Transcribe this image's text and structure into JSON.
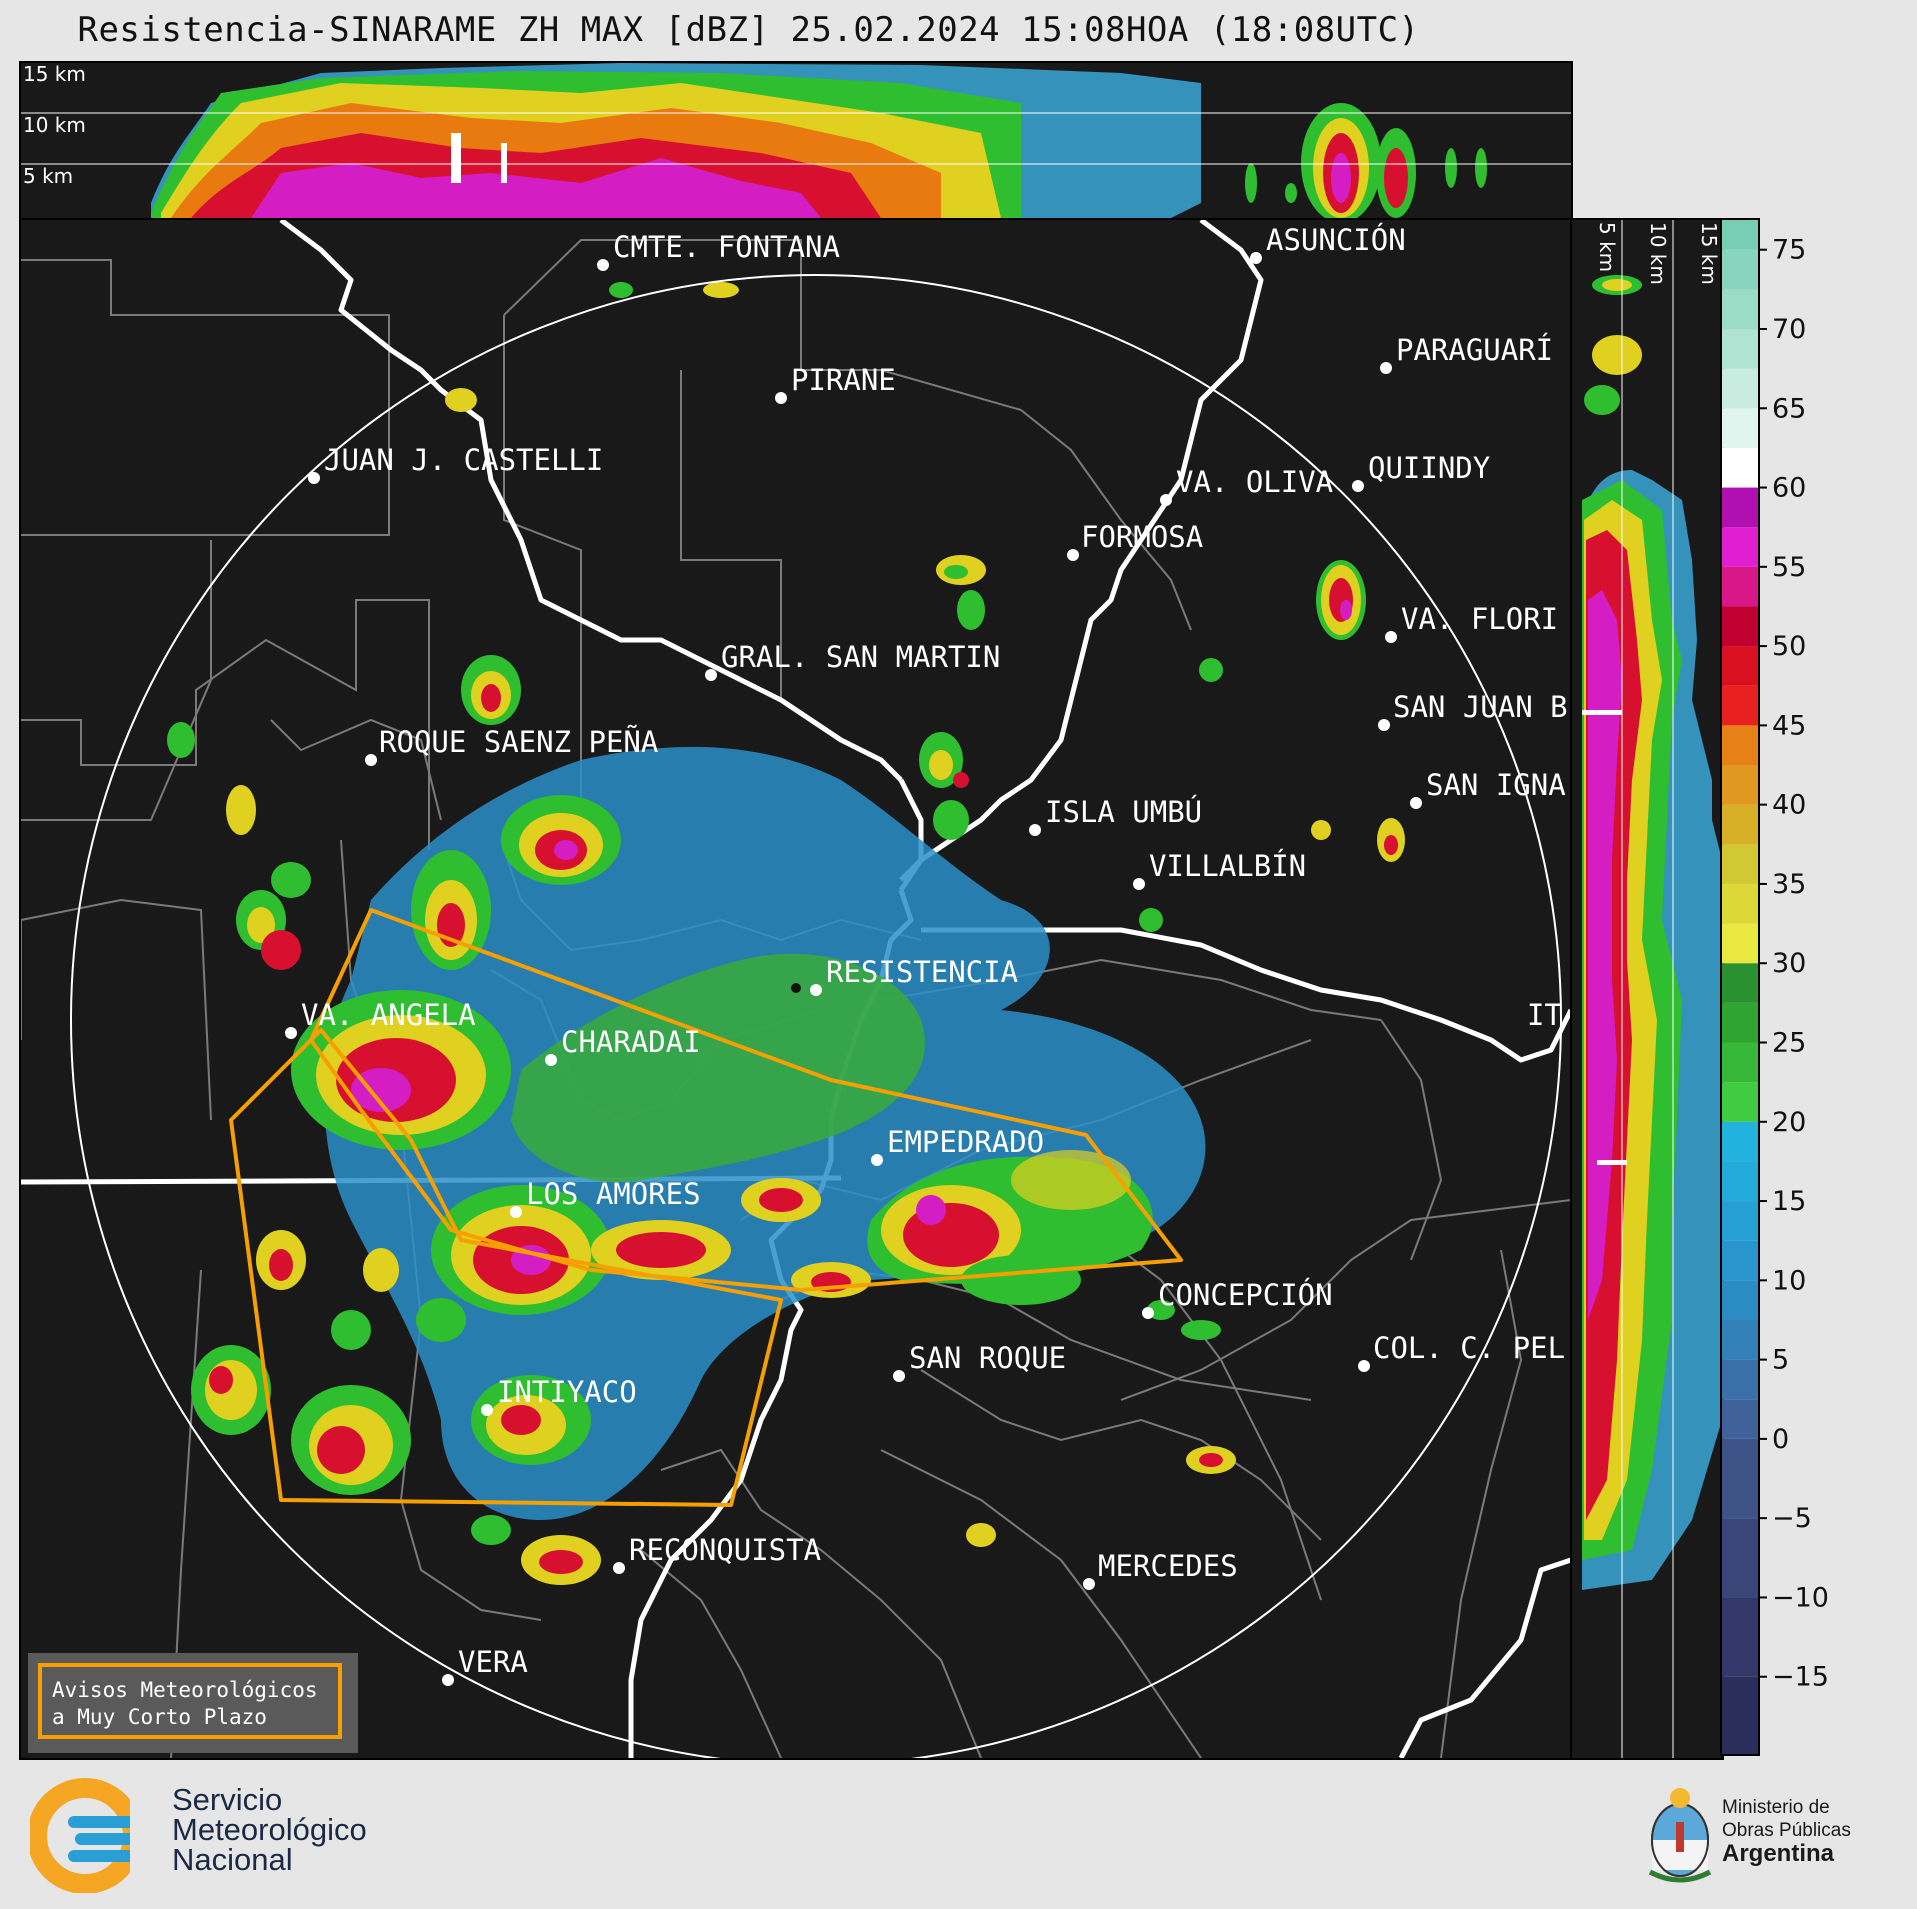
{
  "title": "Resistencia-SINARAME ZH MAX [dBZ] 25.02.2024 15:08HOA (18:08UTC)",
  "top_panel": {
    "height_labels": [
      "15 km",
      "10 km",
      "5 km"
    ]
  },
  "side_panel": {
    "height_labels": [
      "5 km",
      "10 km",
      "15 km"
    ]
  },
  "places": [
    {
      "name": "CMTE. FONTANA"
    },
    {
      "name": "ASUNCIÓN"
    },
    {
      "name": "PIRANE"
    },
    {
      "name": "PARAGUARÍ"
    },
    {
      "name": "JUAN J. CASTELLI"
    },
    {
      "name": "VA. OLIVA"
    },
    {
      "name": "QUIINDY"
    },
    {
      "name": "FORMOSA"
    },
    {
      "name": "VA. FLORI"
    },
    {
      "name": "GRAL. SAN MARTIN"
    },
    {
      "name": "SAN JUAN B"
    },
    {
      "name": "ROQUE SAENZ PEÑA"
    },
    {
      "name": "SAN IGNA"
    },
    {
      "name": "ISLA UMBÚ"
    },
    {
      "name": "VILLALBÍN"
    },
    {
      "name": "RESISTENCIA"
    },
    {
      "name": "VA. ANGELA"
    },
    {
      "name": "IT"
    },
    {
      "name": "CHARADAI"
    },
    {
      "name": "EMPEDRADO"
    },
    {
      "name": "LOS AMORES"
    },
    {
      "name": "CONCEPCIÓN"
    },
    {
      "name": "SAN ROQUE"
    },
    {
      "name": "COL. C. PEL"
    },
    {
      "name": "INTIYACO"
    },
    {
      "name": "RECONQUISTA"
    },
    {
      "name": "MERCEDES"
    },
    {
      "name": "VERA"
    }
  ],
  "colorbar": {
    "ticks": [
      "75",
      "70",
      "65",
      "60",
      "55",
      "50",
      "45",
      "40",
      "35",
      "30",
      "25",
      "20",
      "15",
      "10",
      "5",
      "0",
      "−5",
      "−10",
      "−15"
    ],
    "range": [
      -20,
      77
    ]
  },
  "legend": {
    "line1": "Avisos Meteorológicos",
    "line2": "a Muy Corto Plazo",
    "border_color": "#f5a000"
  },
  "footer": {
    "smn": {
      "line1": "Servicio",
      "line2": "Meteorológico",
      "line3": "Nacional"
    },
    "ministry": {
      "line1": "Ministerio de",
      "line2": "Obras Públicas",
      "line3": "Argentina"
    }
  },
  "colors": {
    "warning_polygon": "#f5a000",
    "background": "#191919",
    "range_ring": "#ffffff",
    "borders": "#7a7a7a"
  }
}
